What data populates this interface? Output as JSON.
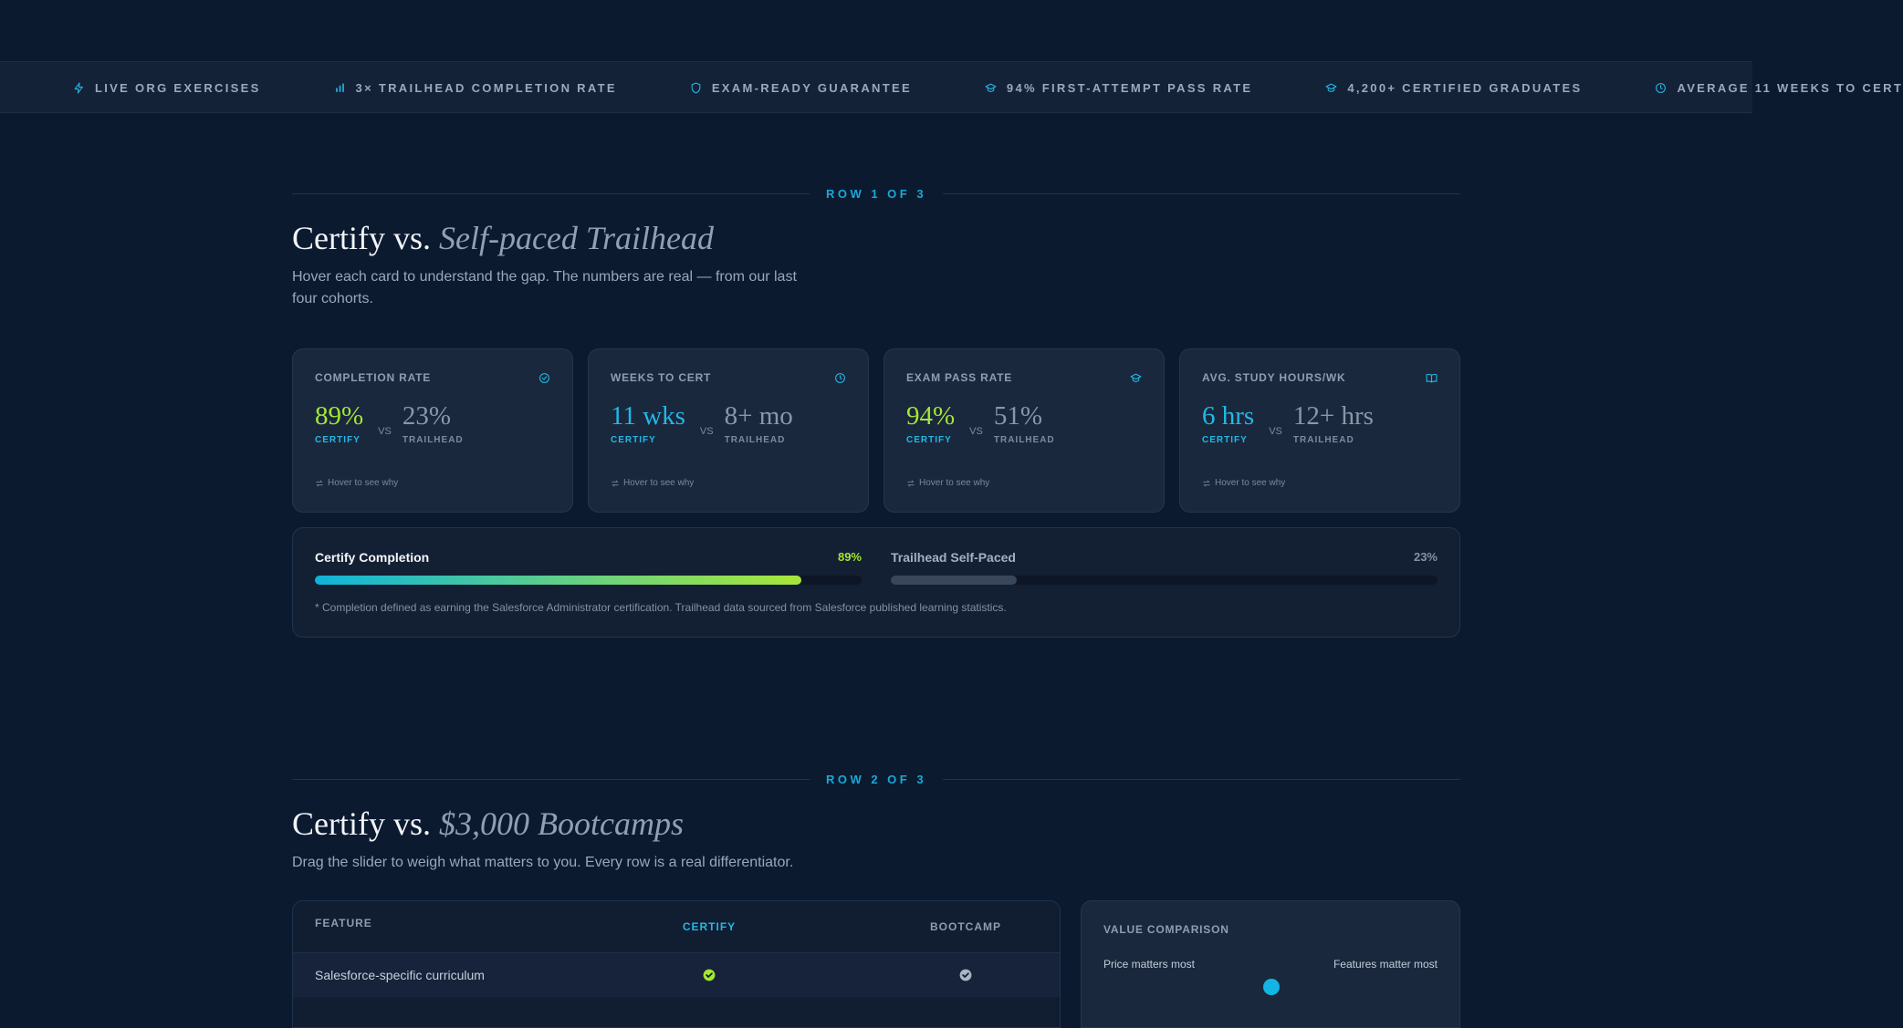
{
  "ticker": [
    {
      "icon": "bolt-icon",
      "label": "LIVE ORG EXERCISES"
    },
    {
      "icon": "bar-chart-icon",
      "label": "3× TRAILHEAD COMPLETION RATE"
    },
    {
      "icon": "shield-icon",
      "label": "EXAM-READY GUARANTEE"
    },
    {
      "icon": "graduation-cap-icon",
      "label": "94% FIRST-ATTEMPT PASS RATE"
    },
    {
      "icon": "graduation-cap-icon",
      "label": "4,200+ CERTIFIED GRADUATES"
    },
    {
      "icon": "clock-icon",
      "label": "AVERAGE 11 WEEKS TO CERT"
    }
  ],
  "row1": {
    "divider": "ROW 1 OF 3",
    "title_lead": "Certify vs.",
    "title_em": "Self-paced Trailhead",
    "subtitle": "Hover each card to understand the gap. The numbers are real — from our last four cohorts.",
    "cards": [
      {
        "label": "COMPLETION RATE",
        "icon": "check-circle-icon",
        "cert_value": "89%",
        "cert_color": "#a3e635",
        "trail_value": "23%"
      },
      {
        "label": "WEEKS TO CERT",
        "icon": "clock-icon",
        "cert_value": "11 wks",
        "cert_color": "#22b8e6",
        "trail_value": "8+ mo"
      },
      {
        "label": "EXAM PASS RATE",
        "icon": "graduation-cap-icon",
        "cert_value": "94%",
        "cert_color": "#a3e635",
        "trail_value": "51%"
      },
      {
        "label": "AVG. STUDY HOURS/WK",
        "icon": "book-icon",
        "cert_value": "6 hrs",
        "cert_color": "#22b8e6",
        "trail_value": "12+ hrs"
      }
    ],
    "cert_tag": "CERTIFY",
    "trail_tag": "TRAILHEAD",
    "vs": "VS",
    "hover_hint": "Hover to see why",
    "progress": {
      "cert_label": "Certify Completion",
      "cert_pct": "89%",
      "cert_fraction": 0.89,
      "trail_label": "Trailhead Self-Paced",
      "trail_pct": "23%",
      "trail_fraction": 0.23,
      "footnote": "* Completion defined as earning the Salesforce Administrator certification. Trailhead data sourced from Salesforce published learning statistics."
    }
  },
  "row2": {
    "divider": "ROW 2 OF 3",
    "title_lead": "Certify vs.",
    "title_em": "$3,000 Bootcamps",
    "subtitle": "Drag the slider to weigh what matters to you. Every row is a real differentiator.",
    "table": {
      "col_feature": "FEATURE",
      "col_cert": "CERTIFY",
      "col_boot": "BOOTCAMP",
      "rows": [
        {
          "feature": "Salesforce-specific curriculum",
          "cert": true,
          "boot": true
        }
      ]
    },
    "value": {
      "title": "VALUE COMPARISON",
      "left_label": "Price matters most",
      "right_label": "Features matter most",
      "slider_fraction": 0.5
    }
  },
  "colors": {
    "accent_blue": "#22b8e6",
    "accent_green": "#a3e635",
    "background": "#0c1a30"
  }
}
